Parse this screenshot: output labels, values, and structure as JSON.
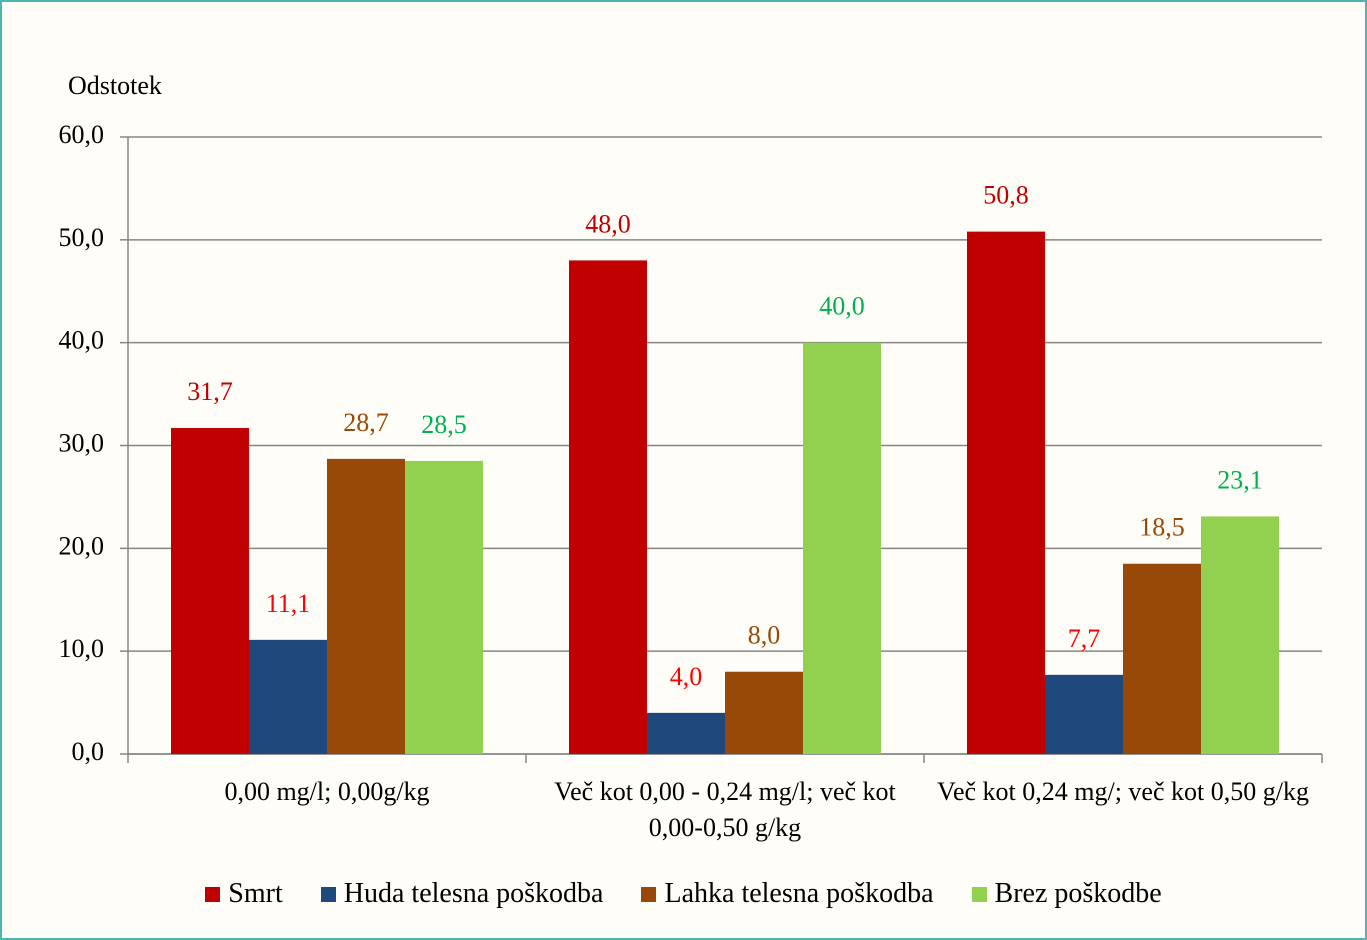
{
  "chart_data": {
    "type": "bar",
    "ylabel": "Odstotek",
    "categories": [
      "0,00 mg/l; 0,00g/kg",
      "Več kot 0,00 - 0,24 mg/l; več kot 0,00-0,50 g/kg",
      "Več kot 0,24 mg/; več kot 0,50 g/kg"
    ],
    "series": [
      {
        "name": "Smrt",
        "color": "#c00000",
        "label_color": "#c00000",
        "values": [
          31.7,
          48.0,
          50.8
        ],
        "value_labels": [
          "31,7",
          "48,0",
          "50,8"
        ]
      },
      {
        "name": "Huda telesna poškodba",
        "color": "#1f497d",
        "label_color": "#ff0000",
        "values": [
          11.1,
          4.0,
          7.7
        ],
        "value_labels": [
          "11,1",
          "4,0",
          "7,7"
        ]
      },
      {
        "name": "Lahka telesna poškodba",
        "color": "#984807",
        "label_color": "#984807",
        "values": [
          28.7,
          8.0,
          18.5
        ],
        "value_labels": [
          "28,7",
          "8,0",
          "18,5"
        ]
      },
      {
        "name": "Brez poškodbe",
        "color": "#92d050",
        "label_color": "#00b050",
        "values": [
          28.5,
          40.0,
          23.1
        ],
        "value_labels": [
          "28,5",
          "40,0",
          "23,1"
        ]
      }
    ],
    "ylim": [
      0,
      60
    ],
    "yticks": [
      {
        "value": 0,
        "label": "0,0"
      },
      {
        "value": 10,
        "label": "10,0"
      },
      {
        "value": 20,
        "label": "20,0"
      },
      {
        "value": 30,
        "label": "30,0"
      },
      {
        "value": 40,
        "label": "40,0"
      },
      {
        "value": 50,
        "label": "50,0"
      },
      {
        "value": 60,
        "label": "60,0"
      }
    ],
    "grid": true,
    "legend": "bottom"
  }
}
